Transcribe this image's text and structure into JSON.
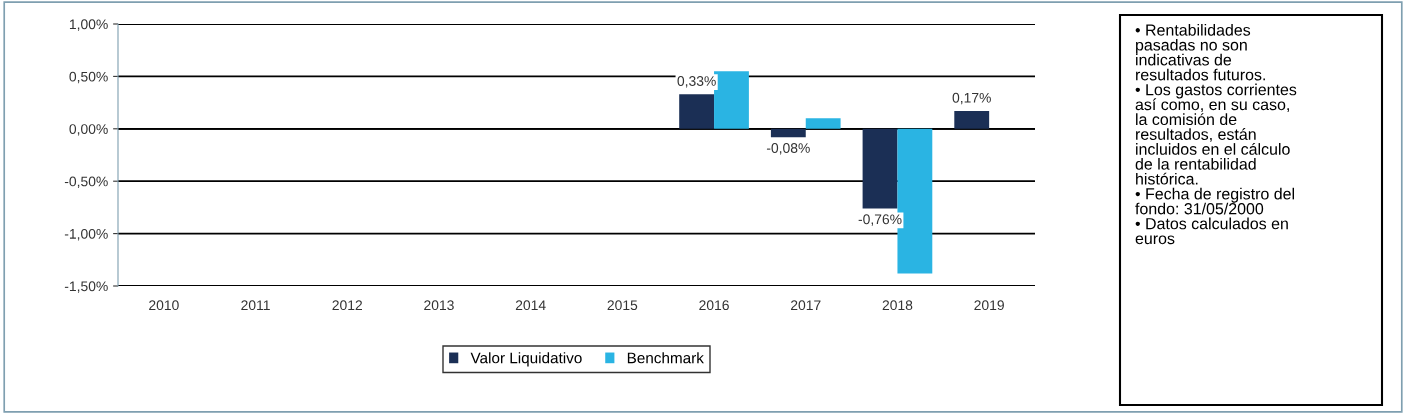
{
  "chart_data": {
    "type": "bar",
    "categories": [
      "2010",
      "2011",
      "2012",
      "2013",
      "2014",
      "2015",
      "2016",
      "2017",
      "2018",
      "2019"
    ],
    "series": [
      {
        "name": "Valor Liquidativo",
        "color": "#1b2f55",
        "values": [
          null,
          null,
          null,
          null,
          null,
          null,
          0.33,
          -0.08,
          -0.76,
          0.17
        ],
        "value_labels": [
          null,
          null,
          null,
          null,
          null,
          null,
          "0,33%",
          "-0,08%",
          "-0,76%",
          "0,17%"
        ]
      },
      {
        "name": "Benchmark",
        "color": "#2ab4e3",
        "values": [
          null,
          null,
          null,
          null,
          null,
          null,
          0.55,
          0.1,
          -1.38,
          null
        ]
      }
    ],
    "ylim": [
      -1.5,
      1.0
    ],
    "yticks": [
      {
        "value": -1.5,
        "label": "-1,50%"
      },
      {
        "value": -1.0,
        "label": "-1,00%"
      },
      {
        "value": -0.5,
        "label": "-0,50%"
      },
      {
        "value": 0.0,
        "label": "0,00%"
      },
      {
        "value": 0.5,
        "label": "0,50%"
      },
      {
        "value": 1.0,
        "label": "1,00%"
      }
    ],
    "grid": "y",
    "legend": "bottom",
    "annotations": [
      "• Rentabilidades\npasadas no son\nindicativas de\nresultados futuros.\n• Los gastos corrientes\nasí como, en su caso,\nla comisión de\nresultados, están\nincluidos en el cálculo\nde la rentabilidad\nhistórica.\n• Fecha de registro del\nfondo: 31/05/2000\n• Datos calculados en\neuros"
    ]
  }
}
